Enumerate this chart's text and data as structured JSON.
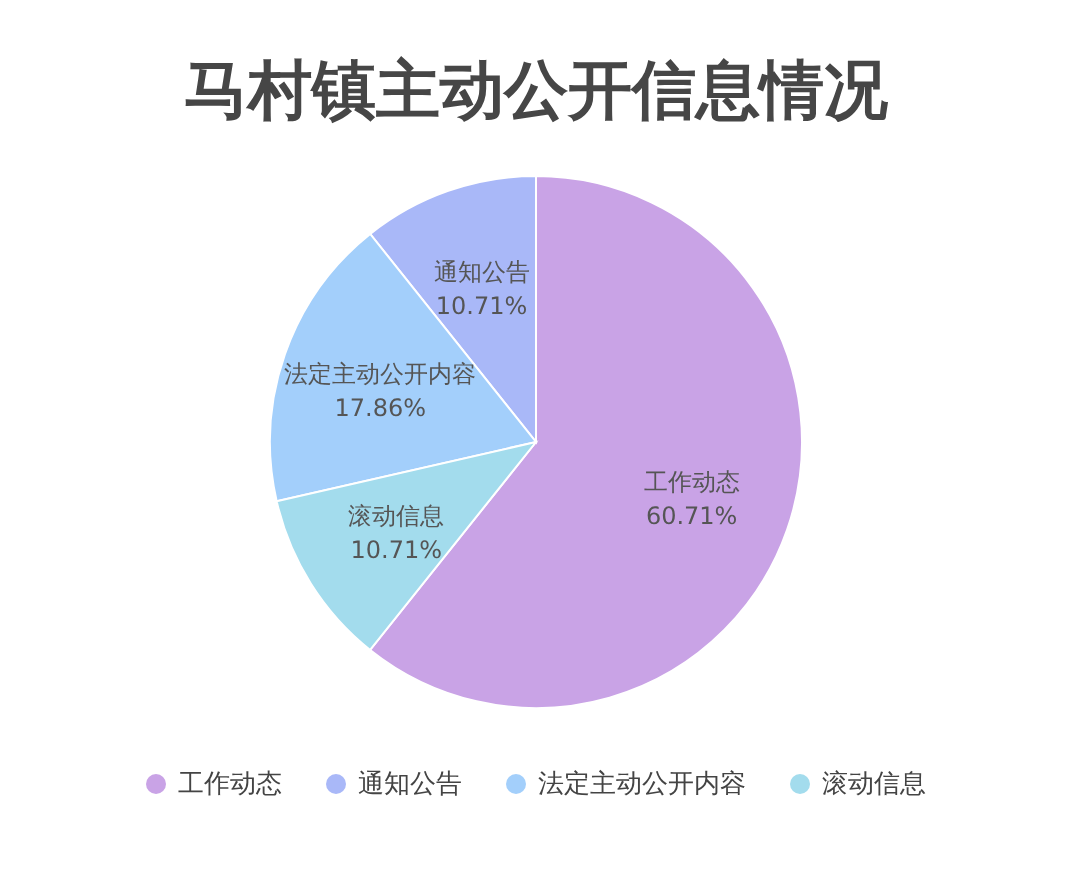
{
  "chart_data": {
    "type": "pie",
    "title": "马村镇主动公开信息情况",
    "categories": [
      "工作动态",
      "通知公告",
      "法定主动公开内容",
      "滚动信息"
    ],
    "values": [
      60.71,
      10.71,
      17.86,
      10.71
    ],
    "value_labels": [
      "60.71%",
      "10.71%",
      "17.86%",
      "10.71%"
    ],
    "colors": [
      "#c9a3e6",
      "#a9b8f8",
      "#a3cffb",
      "#a3dced"
    ],
    "data_labels": true,
    "legend": "bottom"
  }
}
